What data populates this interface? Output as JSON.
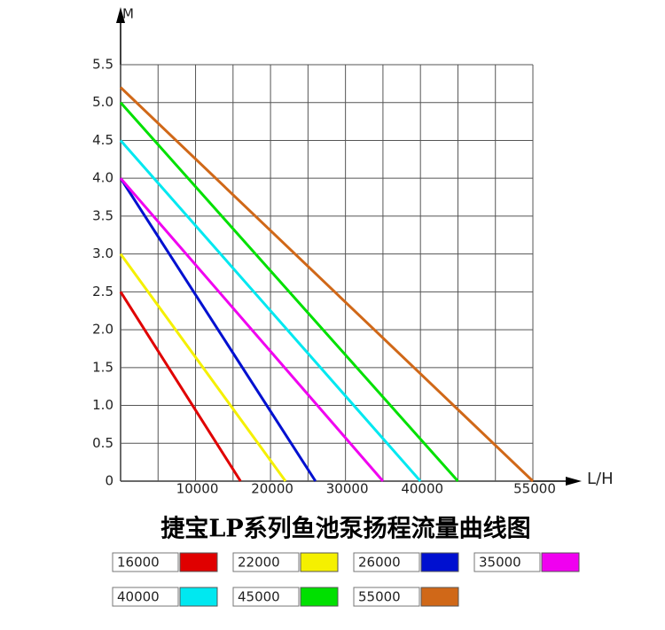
{
  "chart_data": {
    "type": "line",
    "title": "捷宝LP系列鱼池泵扬程流量曲线图",
    "x_label": "L/H",
    "y_label": "M",
    "xlim": [
      0,
      55000
    ],
    "ylim": [
      0,
      5.5
    ],
    "xticks": [
      10000,
      20000,
      30000,
      40000,
      55000
    ],
    "xgrid": [
      0,
      5000,
      10000,
      15000,
      20000,
      25000,
      30000,
      35000,
      40000,
      45000,
      50000,
      55000
    ],
    "yticks": [
      0,
      0.5,
      {
        "value": 1,
        "label": "1.0"
      },
      1.5,
      {
        "value": 2,
        "label": "2.0"
      },
      2.5,
      {
        "value": 3,
        "label": "3.0"
      },
      3.5,
      {
        "value": 4,
        "label": "4.0"
      },
      4.5,
      {
        "value": 5,
        "label": "5.0"
      },
      5.5
    ],
    "grid": true,
    "series": [
      {
        "name": "16000",
        "color": "#e00000",
        "x": [
          0,
          16000
        ],
        "values": [
          2.5,
          0
        ]
      },
      {
        "name": "22000",
        "color": "#f5f000",
        "x": [
          0,
          22000
        ],
        "values": [
          3.0,
          0
        ]
      },
      {
        "name": "26000",
        "color": "#0010d0",
        "x": [
          0,
          26000
        ],
        "values": [
          4.0,
          0
        ]
      },
      {
        "name": "35000",
        "color": "#f000f0",
        "x": [
          0,
          35000
        ],
        "values": [
          4.0,
          0
        ]
      },
      {
        "name": "40000",
        "color": "#00e8f0",
        "x": [
          0,
          40000
        ],
        "values": [
          4.5,
          0
        ]
      },
      {
        "name": "45000",
        "color": "#00e000",
        "x": [
          0,
          45000
        ],
        "values": [
          5.0,
          0
        ]
      },
      {
        "name": "55000",
        "color": "#d06818",
        "x": [
          0,
          55000
        ],
        "values": [
          5.2,
          0
        ]
      }
    ]
  }
}
